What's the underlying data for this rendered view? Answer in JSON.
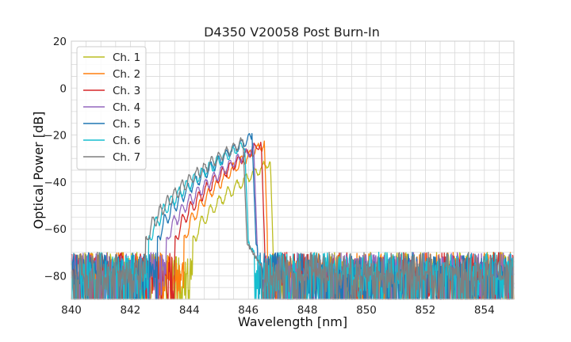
{
  "chart_data": {
    "type": "line",
    "title": "D4350 V20058 Post Burn-In",
    "xlabel": "Wavelength [nm]",
    "ylabel": "Optical Power [dB]",
    "xlim": [
      840,
      855
    ],
    "ylim": [
      -90,
      20
    ],
    "x_major_ticks": [
      840,
      842,
      844,
      846,
      848,
      850,
      852,
      854
    ],
    "x_tick_labels": [
      "840",
      "842",
      "844",
      "846",
      "848",
      "850",
      "852",
      "854"
    ],
    "x_minor_step": 0.5,
    "y_major_ticks": [
      -80,
      -60,
      -40,
      -20,
      0,
      20
    ],
    "y_tick_labels": [
      "−80",
      "−60",
      "−40",
      "−20",
      "0",
      "20"
    ],
    "y_minor_step": 5,
    "grid": true,
    "legend_position": "top-left",
    "noise_floor_db": -70,
    "x_step": 0.02,
    "series": [
      {
        "name": "Ch. 1",
        "color": "#bcbd22",
        "band_start": 844.1,
        "band_end": 846.85,
        "band_peak_db": -29,
        "ripple_period": 0.3,
        "noise_gap_start": 844.25,
        "noise_gap_end": 846.85
      },
      {
        "name": "Ch. 2",
        "color": "#ff7f0e",
        "band_start": 843.8,
        "band_end": 846.65,
        "band_peak_db": -21,
        "ripple_period": 0.28,
        "noise_gap_start": 844.0,
        "noise_gap_end": 846.6
      },
      {
        "name": "Ch. 3",
        "color": "#d62728",
        "band_start": 843.5,
        "band_end": 846.55,
        "band_peak_db": -21,
        "ripple_period": 0.27,
        "noise_gap_start": 843.7,
        "noise_gap_end": 846.55
      },
      {
        "name": "Ch. 4",
        "color": "#9467bd",
        "band_start": 843.2,
        "band_end": 846.3,
        "band_peak_db": -23,
        "ripple_period": 0.27,
        "noise_gap_start": 843.4,
        "noise_gap_end": 846.3
      },
      {
        "name": "Ch. 5",
        "color": "#1f77b4",
        "band_start": 842.9,
        "band_end": 846.25,
        "band_peak_db": -18,
        "ripple_period": 0.26,
        "noise_gap_start": 843.1,
        "noise_gap_end": 846.3
      },
      {
        "name": "Ch. 6",
        "color": "#17becf",
        "band_start": 842.6,
        "band_end": 846.0,
        "band_peak_db": -21,
        "ripple_period": 0.26,
        "noise_gap_start": 842.9,
        "noise_gap_end": 846.2
      },
      {
        "name": "Ch. 7",
        "color": "#7f7f7f",
        "band_start": 842.5,
        "band_end": 845.95,
        "band_peak_db": -20,
        "ripple_period": 0.25,
        "noise_gap_start": 843.1,
        "noise_gap_end": 846.45
      }
    ]
  }
}
